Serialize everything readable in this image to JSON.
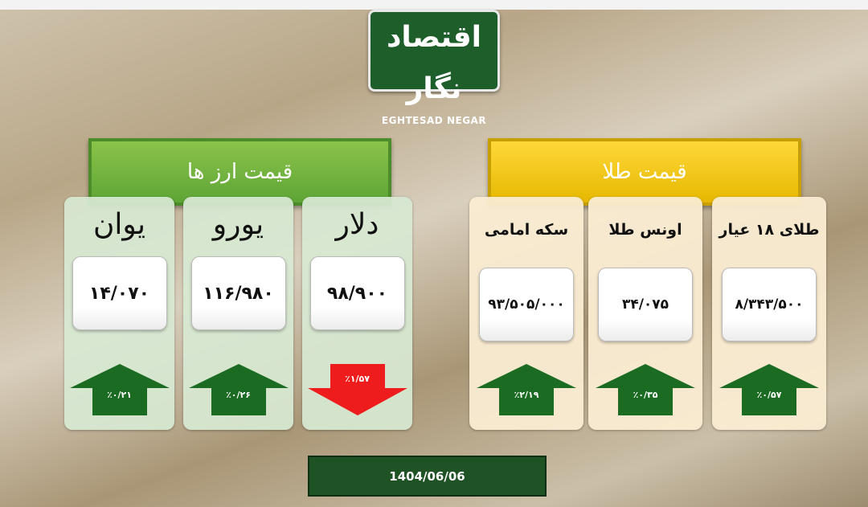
{
  "logo": {
    "fa": "اقتصاد نگار",
    "en": "EGHTESAD NEGAR"
  },
  "currency": {
    "title": "قیمت ارز ها",
    "items": [
      {
        "name": "یوان",
        "price": "۱۴/۰۷۰",
        "change": "٪۰/۲۱",
        "direction": "up"
      },
      {
        "name": "یورو",
        "price": "۱۱۶/۹۸۰",
        "change": "٪۰/۲۶",
        "direction": "up"
      },
      {
        "name": "دلار",
        "price": "۹۸/۹۰۰",
        "change": "٪۱/۵۷",
        "direction": "down"
      }
    ]
  },
  "gold": {
    "title": "قیمت طلا",
    "items": [
      {
        "name": "سکه امامی",
        "price": "۹۳/۵۰۵/۰۰۰",
        "change": "٪۲/۱۹",
        "direction": "up"
      },
      {
        "name": "اونس طلا",
        "price": "۳۴/۰۷۵",
        "change": "٪۰/۳۵",
        "direction": "up"
      },
      {
        "name": "طلای ۱۸ عیار",
        "price": "۸/۳۴۳/۵۰۰",
        "change": "٪۰/۵۷",
        "direction": "up"
      }
    ]
  },
  "date": "1404/06/06",
  "colors": {
    "up": "#1b6b23",
    "down": "#ee1c1c",
    "fx_banner": "#6db33f",
    "gold_banner": "#f5c800"
  }
}
